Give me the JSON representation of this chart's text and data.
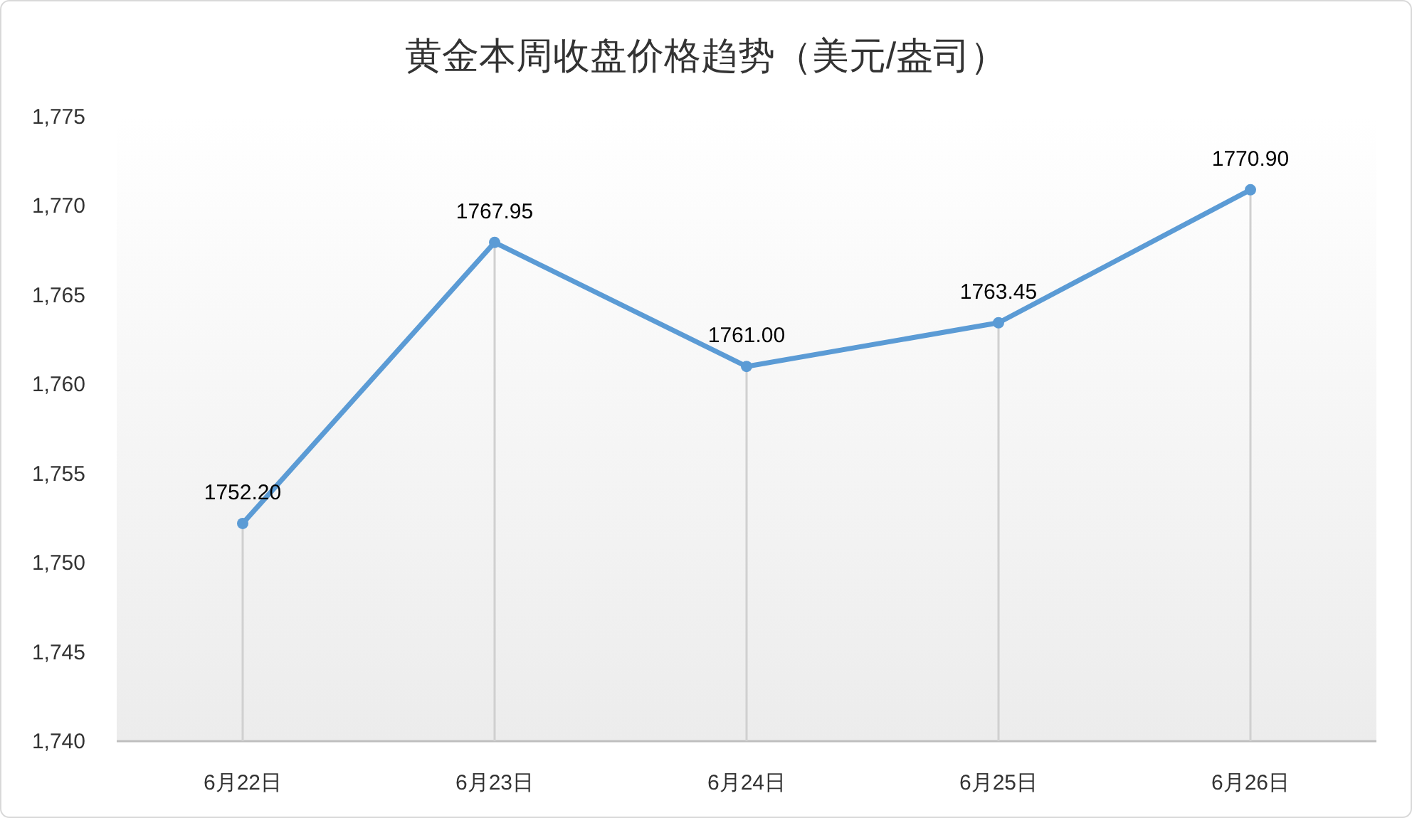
{
  "chart_data": {
    "type": "line",
    "title": "黄金本周收盘价格趋势（美元/盎司）",
    "categories": [
      "6月22日",
      "6月23日",
      "6月24日",
      "6月25日",
      "6月26日"
    ],
    "series": [
      {
        "color": "#5b9bd5",
        "values": [
          1752.2,
          1767.95,
          1761,
          1763.45,
          1770.9
        ]
      }
    ],
    "value_labels": [
      "1752.20",
      "1767.95",
      "1761.00",
      "1763.45",
      "1770.90"
    ],
    "ylim": [
      1740,
      1775
    ],
    "yticks": [
      {
        "value": 1740,
        "label": "1,740"
      },
      {
        "value": 1745,
        "label": "1,745"
      },
      {
        "value": 1750,
        "label": "1,750"
      },
      {
        "value": 1755,
        "label": "1,755"
      },
      {
        "value": 1760,
        "label": "1,760"
      },
      {
        "value": 1765,
        "label": "1,765"
      },
      {
        "value": 1770,
        "label": "1,770"
      },
      {
        "value": 1775,
        "label": "1,775"
      }
    ],
    "grid": "x",
    "marker": "circle",
    "line_style": "solid"
  }
}
